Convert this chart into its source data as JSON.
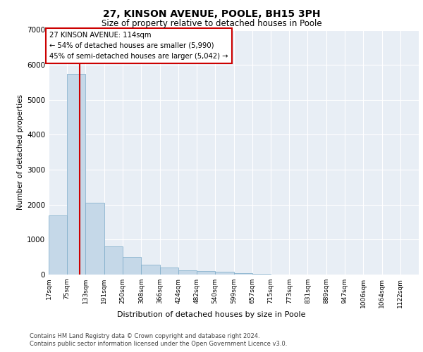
{
  "title1": "27, KINSON AVENUE, POOLE, BH15 3PH",
  "title2": "Size of property relative to detached houses in Poole",
  "xlabel": "Distribution of detached houses by size in Poole",
  "ylabel": "Number of detached properties",
  "footer1": "Contains HM Land Registry data © Crown copyright and database right 2024.",
  "footer2": "Contains public sector information licensed under the Open Government Licence v3.0.",
  "annotation_title": "27 KINSON AVENUE: 114sqm",
  "annotation_line1": "← 54% of detached houses are smaller (5,990)",
  "annotation_line2": "45% of semi-detached houses are larger (5,042) →",
  "property_size": 114,
  "bin_edges": [
    17,
    75,
    133,
    191,
    250,
    308,
    366,
    424,
    482,
    540,
    599,
    657,
    715,
    773,
    831,
    889,
    947,
    1006,
    1064,
    1122,
    1180
  ],
  "bar_heights": [
    1700,
    5750,
    2050,
    800,
    500,
    275,
    200,
    130,
    110,
    80,
    50,
    25,
    10,
    5,
    3,
    2,
    1,
    1,
    1,
    1
  ],
  "bar_color": "#c5d8e8",
  "bar_edge_color": "#7baac8",
  "vline_color": "#cc0000",
  "annotation_box_color": "#cc0000",
  "bg_color": "#e8eef5",
  "ylim": [
    0,
    7000
  ],
  "yticks": [
    0,
    1000,
    2000,
    3000,
    4000,
    5000,
    6000,
    7000
  ]
}
